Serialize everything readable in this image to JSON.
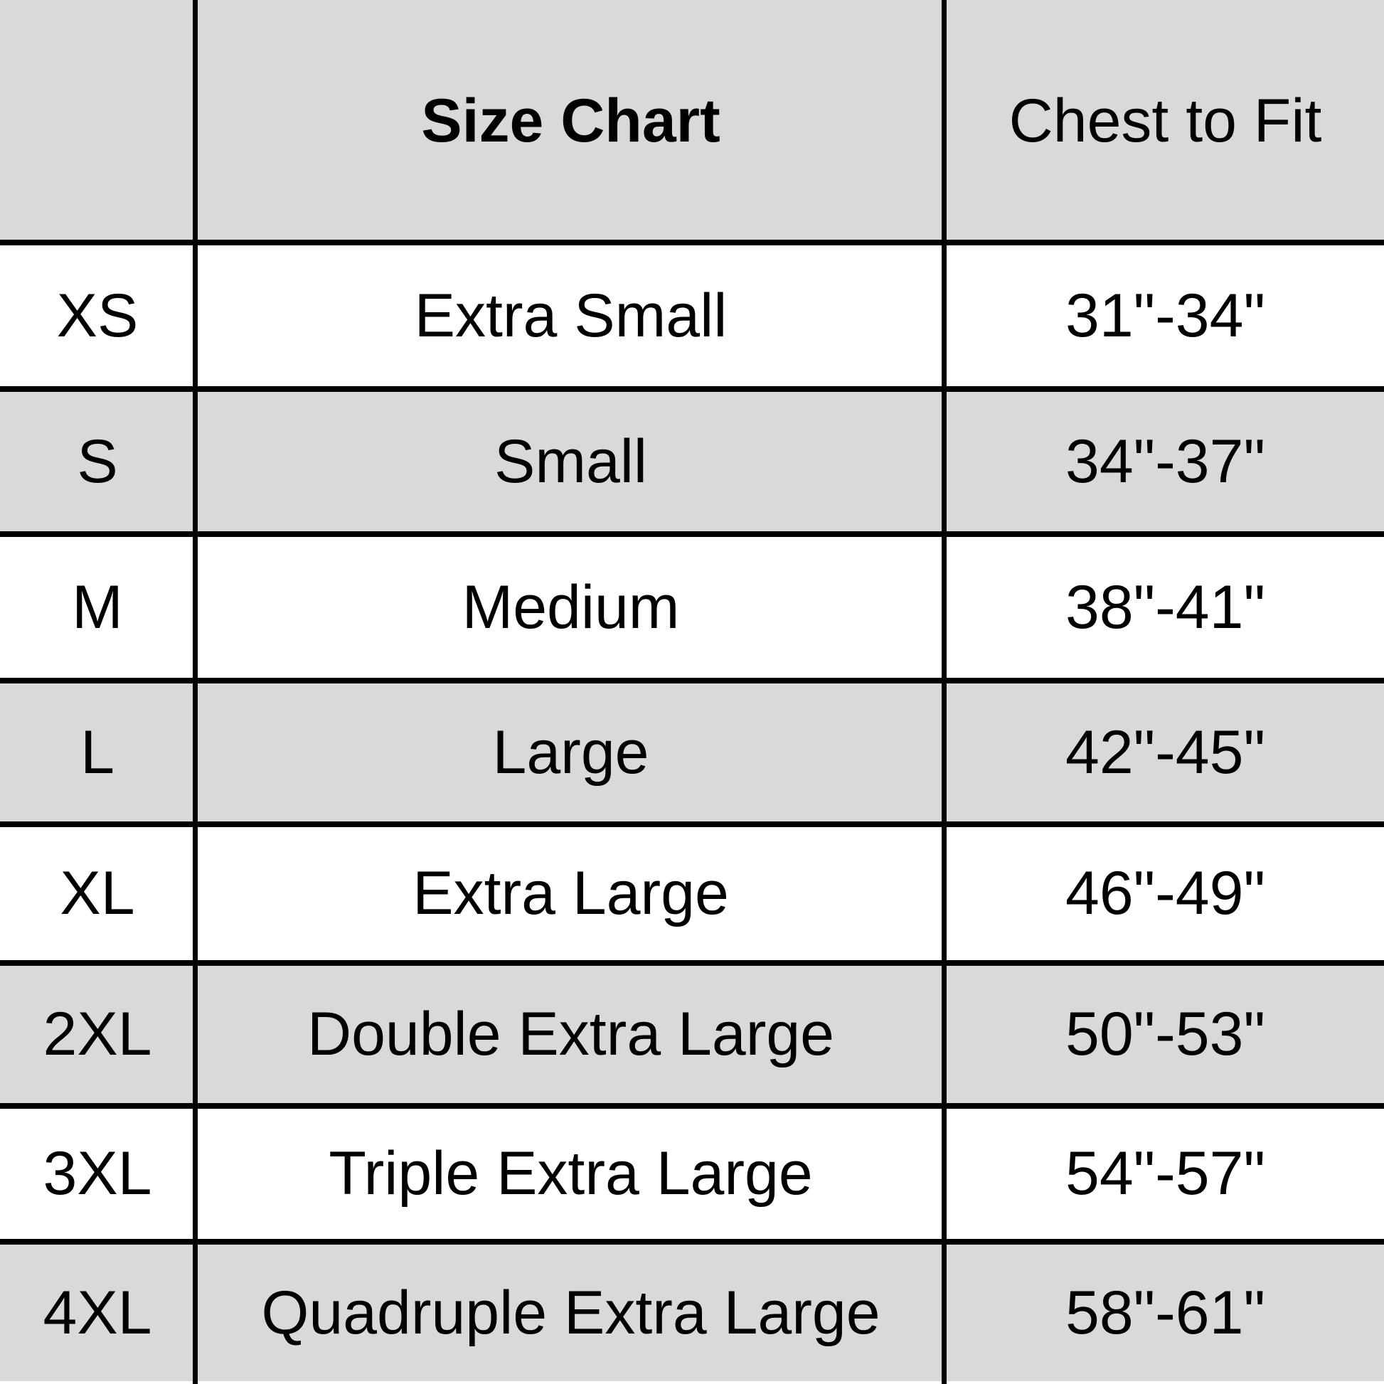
{
  "header": {
    "size_col": "",
    "title": "Size Chart",
    "measure_col": "Chest to Fit"
  },
  "colors": {
    "shaded_row": "#d9d9d9",
    "plain_row": "#ffffff",
    "lines": "#000000"
  },
  "rows": [
    {
      "code": "XS",
      "name": "Extra Small",
      "chest": "31\"-34\""
    },
    {
      "code": "S",
      "name": "Small",
      "chest": "34\"-37\""
    },
    {
      "code": "M",
      "name": "Medium",
      "chest": "38\"-41\""
    },
    {
      "code": "L",
      "name": "Large",
      "chest": "42\"-45\""
    },
    {
      "code": "XL",
      "name": "Extra Large",
      "chest": "46\"-49\""
    },
    {
      "code": "2XL",
      "name": "Double Extra Large",
      "chest": "50\"-53\""
    },
    {
      "code": "3XL",
      "name": "Triple Extra Large",
      "chest": "54\"-57\""
    },
    {
      "code": "4XL",
      "name": "Quadruple Extra Large",
      "chest": "58\"-61\""
    }
  ]
}
